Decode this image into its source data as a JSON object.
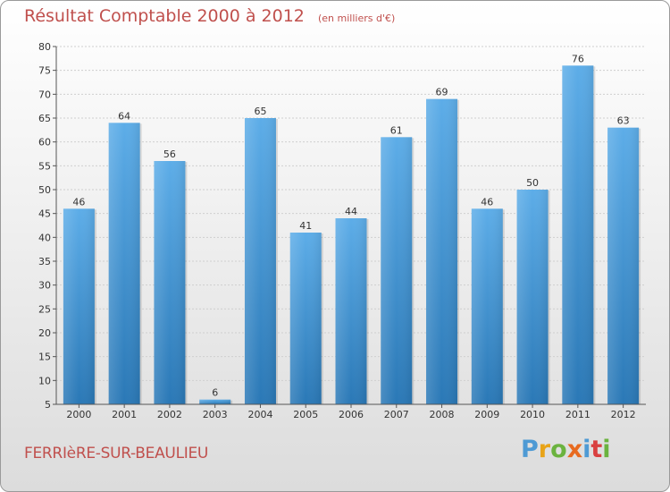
{
  "chart_data": {
    "type": "bar",
    "title": "Résultat Comptable 2000 à 2012",
    "subtitle": "(en milliers d'€)",
    "categories": [
      "2000",
      "2001",
      "2002",
      "2003",
      "2004",
      "2005",
      "2006",
      "2007",
      "2008",
      "2009",
      "2010",
      "2011",
      "2012"
    ],
    "values": [
      46,
      64,
      56,
      6,
      65,
      41,
      44,
      61,
      69,
      46,
      50,
      76,
      63
    ],
    "ylim": [
      5,
      80
    ],
    "yticks": [
      5,
      10,
      15,
      20,
      25,
      30,
      35,
      40,
      45,
      50,
      55,
      60,
      65,
      70,
      75,
      80
    ],
    "grid": true,
    "colors": {
      "bar_top": "#5dade8",
      "bar_bottom": "#2a78b6"
    }
  },
  "footer": {
    "town": "FERRIèRE-SUR-BEAULIEU",
    "logo": [
      "P",
      "r",
      "o",
      "x",
      "i",
      "t",
      "i"
    ]
  }
}
